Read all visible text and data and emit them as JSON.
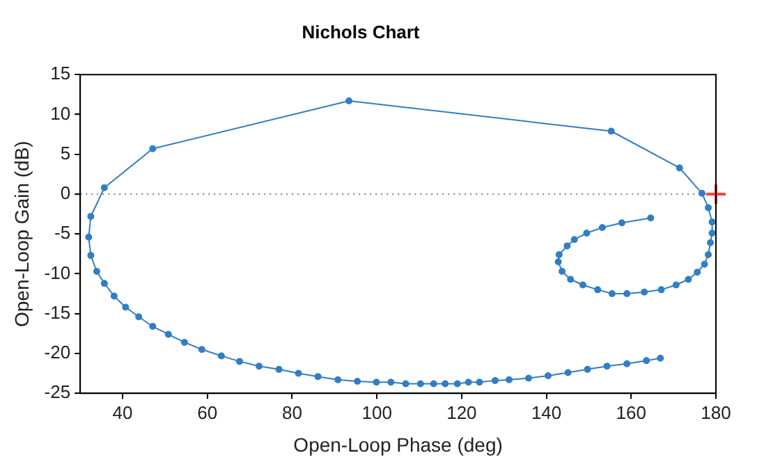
{
  "chart_data": {
    "type": "line",
    "title": "Nichols Chart",
    "xlabel": "Open-Loop Phase (deg)",
    "ylabel": "Open-Loop Gain (dB)",
    "xlim": [
      30,
      180
    ],
    "xticks": [
      40,
      60,
      80,
      100,
      120,
      140,
      160,
      180
    ],
    "ylim": [
      -25,
      15
    ],
    "yticks": [
      -25,
      -20,
      -15,
      -10,
      -5,
      0,
      5,
      10,
      15
    ],
    "grid": false,
    "legend": false,
    "ref_lines": [
      {
        "axis": "y",
        "value": 0,
        "color": "#808080",
        "line_style": "dotted"
      }
    ],
    "series": [
      {
        "color": "#2f7ec6",
        "marker": "circle",
        "x": [
          166.9,
          163.6,
          159.0,
          154.3,
          149.7,
          145.1,
          140.4,
          135.8,
          131.2,
          127.9,
          124.2,
          121.6,
          119.0,
          116.1,
          113.4,
          110.3,
          106.8,
          103.3,
          99.9,
          95.4,
          90.8,
          86.1,
          81.5,
          76.9,
          72.2,
          67.6,
          63.3,
          58.7,
          54.6,
          50.8,
          47.1,
          43.8,
          40.7,
          38.0,
          35.7,
          33.9,
          32.5,
          32.0,
          32.5,
          35.7,
          47.1,
          93.4,
          155.3,
          171.4,
          176.7,
          178.2,
          179.1,
          179.1,
          178.7,
          178.2,
          177.3,
          175.6,
          173.5,
          170.6,
          167.1,
          163.1,
          159.0,
          155.5,
          152.1,
          148.6,
          145.7,
          143.7,
          142.8,
          143.0,
          144.9,
          146.6,
          149.5,
          153.2,
          157.8,
          164.6
        ],
        "values": [
          -20.6,
          -20.9,
          -21.3,
          -21.6,
          -22.0,
          -22.4,
          -22.8,
          -23.1,
          -23.3,
          -23.4,
          -23.6,
          -23.6,
          -23.8,
          -23.8,
          -23.8,
          -23.8,
          -23.8,
          -23.6,
          -23.6,
          -23.5,
          -23.3,
          -22.9,
          -22.5,
          -22.0,
          -21.6,
          -21.0,
          -20.3,
          -19.5,
          -18.6,
          -17.6,
          -16.6,
          -15.4,
          -14.2,
          -12.8,
          -11.2,
          -9.7,
          -7.7,
          -5.4,
          -2.8,
          0.8,
          5.7,
          11.7,
          7.9,
          3.3,
          0.1,
          -1.7,
          -3.5,
          -4.9,
          -6.1,
          -7.6,
          -8.8,
          -9.8,
          -10.7,
          -11.4,
          -12.0,
          -12.3,
          -12.5,
          -12.5,
          -12.0,
          -11.4,
          -10.7,
          -9.7,
          -8.5,
          -7.6,
          -6.5,
          -5.7,
          -4.9,
          -4.2,
          -3.6,
          -3.0
        ]
      },
      {
        "type": "scatter",
        "color": "#ff4040",
        "marker": "cross",
        "x": [
          180
        ],
        "values": [
          0
        ]
      }
    ]
  }
}
